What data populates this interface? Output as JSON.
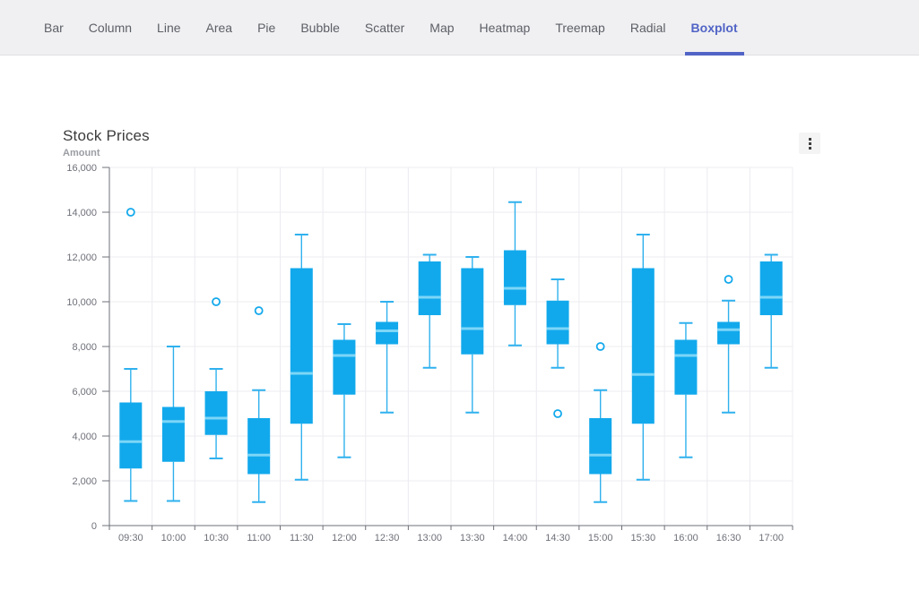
{
  "nav": {
    "tabs": [
      {
        "label": "Bar",
        "active": false
      },
      {
        "label": "Column",
        "active": false
      },
      {
        "label": "Line",
        "active": false
      },
      {
        "label": "Area",
        "active": false
      },
      {
        "label": "Pie",
        "active": false
      },
      {
        "label": "Bubble",
        "active": false
      },
      {
        "label": "Scatter",
        "active": false
      },
      {
        "label": "Map",
        "active": false
      },
      {
        "label": "Heatmap",
        "active": false
      },
      {
        "label": "Treemap",
        "active": false
      },
      {
        "label": "Radial",
        "active": false
      },
      {
        "label": "Boxplot",
        "active": true
      }
    ],
    "active_color": "#5164c6"
  },
  "chart_data": {
    "type": "boxplot",
    "title": "Stock Prices",
    "ylabel": "Amount",
    "xlabel": "",
    "ylim": [
      0,
      16000
    ],
    "y_ticks": [
      0,
      2000,
      4000,
      6000,
      8000,
      10000,
      12000,
      14000,
      16000
    ],
    "y_tick_labels": [
      "0",
      "2,000",
      "4,000",
      "6,000",
      "8,000",
      "10,000",
      "12,000",
      "14,000",
      "16,000"
    ],
    "grid": true,
    "legend": "none",
    "categories": [
      "09:30",
      "10:00",
      "10:30",
      "11:00",
      "11:30",
      "12:00",
      "12:30",
      "13:00",
      "13:30",
      "14:00",
      "14:30",
      "15:00",
      "15:30",
      "16:00",
      "16:30",
      "17:00"
    ],
    "boxes": [
      {
        "low": 1100,
        "q1": 2550,
        "median": 3750,
        "q3": 5500,
        "high": 7000,
        "outliers": [
          14000
        ]
      },
      {
        "low": 1100,
        "q1": 2850,
        "median": 4650,
        "q3": 5300,
        "high": 8000,
        "outliers": []
      },
      {
        "low": 3000,
        "q1": 4050,
        "median": 4800,
        "q3": 6000,
        "high": 7000,
        "outliers": [
          10000
        ]
      },
      {
        "low": 1050,
        "q1": 2300,
        "median": 3150,
        "q3": 4800,
        "high": 6050,
        "outliers": [
          9600
        ]
      },
      {
        "low": 2050,
        "q1": 4550,
        "median": 6800,
        "q3": 11500,
        "high": 13000,
        "outliers": []
      },
      {
        "low": 3050,
        "q1": 5850,
        "median": 7600,
        "q3": 8300,
        "high": 9000,
        "outliers": []
      },
      {
        "low": 5050,
        "q1": 8100,
        "median": 8700,
        "q3": 9100,
        "high": 10000,
        "outliers": []
      },
      {
        "low": 7050,
        "q1": 9400,
        "median": 10200,
        "q3": 11800,
        "high": 12100,
        "outliers": []
      },
      {
        "low": 5050,
        "q1": 7650,
        "median": 8800,
        "q3": 11500,
        "high": 12000,
        "outliers": []
      },
      {
        "low": 8050,
        "q1": 9850,
        "median": 10600,
        "q3": 12300,
        "high": 14450,
        "outliers": []
      },
      {
        "low": 7050,
        "q1": 8100,
        "median": 8800,
        "q3": 10050,
        "high": 11000,
        "outliers": [
          5000
        ]
      },
      {
        "low": 1050,
        "q1": 2300,
        "median": 3150,
        "q3": 4800,
        "high": 6050,
        "outliers": [
          8000
        ]
      },
      {
        "low": 2050,
        "q1": 4550,
        "median": 6750,
        "q3": 11500,
        "high": 13000,
        "outliers": []
      },
      {
        "low": 3050,
        "q1": 5850,
        "median": 7600,
        "q3": 8300,
        "high": 9050,
        "outliers": []
      },
      {
        "low": 5050,
        "q1": 8100,
        "median": 8750,
        "q3": 9100,
        "high": 10050,
        "outliers": [
          11000
        ]
      },
      {
        "low": 7050,
        "q1": 9400,
        "median": 10200,
        "q3": 11800,
        "high": 12100,
        "outliers": []
      }
    ],
    "colors": {
      "box_fill": "#12A9EC",
      "median_line": "#7DD6F7",
      "whisker": "#2FB1EE",
      "outlier_stroke": "#12A9EC",
      "axis": "#6E7079",
      "tick_label": "#6E7079",
      "gridline": "#ECECF1"
    }
  },
  "menu": {
    "icon": "kebab-menu"
  }
}
